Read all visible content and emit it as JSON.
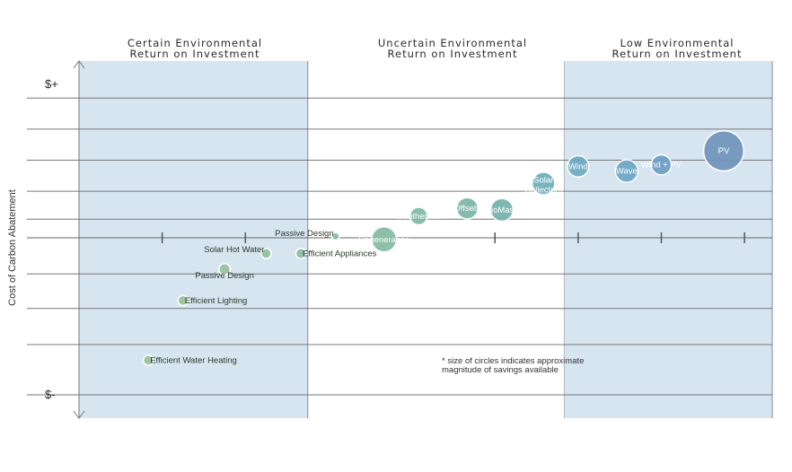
{
  "chart_data": {
    "type": "scatter",
    "title": "",
    "ylabel": "Cost of Carbon Abatement",
    "y_top_label": "$+",
    "y_bottom_label": "$-",
    "ylim": [
      -1,
      1
    ],
    "xlim": [
      0,
      1
    ],
    "grid": true,
    "regions": [
      {
        "line1": "Certain Environmental",
        "line2": "Return on Investment",
        "x_range": [
          0.0,
          0.33
        ],
        "shaded": true
      },
      {
        "line1": "Uncertain Environmental",
        "line2": "Return on Investment",
        "x_range": [
          0.33,
          0.7
        ],
        "shaded": false
      },
      {
        "line1": "Low Environmental",
        "line2": "Return on Investment",
        "x_range": [
          0.7,
          1.0
        ],
        "shaded": true
      }
    ],
    "note_line1": "* size of circles indicates approximate",
    "note_line2": "magnitude of savings available",
    "points": [
      {
        "label": "Efficient Water Heating",
        "x": 0.1,
        "y": -0.78,
        "r": 0.08,
        "color": "#9cc29c",
        "label_color": "dark",
        "label_anchor": "right"
      },
      {
        "label": "Efficient Lighting",
        "x": 0.15,
        "y": -0.4,
        "r": 0.08,
        "color": "#9cc29c",
        "label_color": "dark",
        "label_anchor": "right"
      },
      {
        "label": "Passive Design",
        "x": 0.21,
        "y": -0.2,
        "r": 0.09,
        "color": "#97c09b",
        "label_color": "dark",
        "label_anchor": "below"
      },
      {
        "label": "Solar Hot Water",
        "x": 0.27,
        "y": -0.1,
        "r": 0.08,
        "color": "#8fbf9d",
        "label_color": "dark",
        "label_anchor": "left"
      },
      {
        "label": "Efficient Appliances",
        "x": 0.32,
        "y": -0.1,
        "r": 0.08,
        "color": "#8bbd9f",
        "label_color": "dark",
        "label_anchor": "right"
      },
      {
        "label": "Passive Design",
        "x": 0.37,
        "y": 0.01,
        "r": 0.06,
        "color": "#8bbd9f",
        "label_color": "dark",
        "label_anchor": "left"
      },
      {
        "label": "Cogeneration",
        "x": 0.44,
        "y": -0.01,
        "r": 0.2,
        "color": "#84bba0",
        "label_color": "light",
        "label_anchor": "center"
      },
      {
        "label": "Geothermal",
        "x": 0.49,
        "y": 0.14,
        "r": 0.14,
        "color": "#7fb9a4",
        "label_color": "light",
        "label_anchor": "center"
      },
      {
        "label": "Offsets",
        "x": 0.56,
        "y": 0.19,
        "r": 0.17,
        "color": "#78b5a8",
        "label_color": "light",
        "label_anchor": "center"
      },
      {
        "label": "BioMass",
        "x": 0.61,
        "y": 0.18,
        "r": 0.18,
        "color": "#72b2ab",
        "label_color": "light",
        "label_anchor": "center"
      },
      {
        "label": "Solar Collectors",
        "x": 0.67,
        "y": 0.35,
        "r": 0.18,
        "color": "#6eaeb8",
        "label_color": "light",
        "label_anchor": "center"
      },
      {
        "label": "Wind",
        "x": 0.72,
        "y": 0.46,
        "r": 0.17,
        "color": "#6eaac1",
        "label_color": "light",
        "label_anchor": "center"
      },
      {
        "label": "Wave",
        "x": 0.79,
        "y": 0.43,
        "r": 0.18,
        "color": "#6ba6c6",
        "label_color": "light",
        "label_anchor": "center"
      },
      {
        "label": "Wind + PV",
        "x": 0.84,
        "y": 0.47,
        "r": 0.16,
        "color": "#6d9ec4",
        "label_color": "light",
        "label_anchor": "center"
      },
      {
        "label": "PV",
        "x": 0.93,
        "y": 0.56,
        "r": 0.32,
        "color": "#6f95bb",
        "label_color": "light",
        "label_anchor": "center"
      }
    ]
  }
}
